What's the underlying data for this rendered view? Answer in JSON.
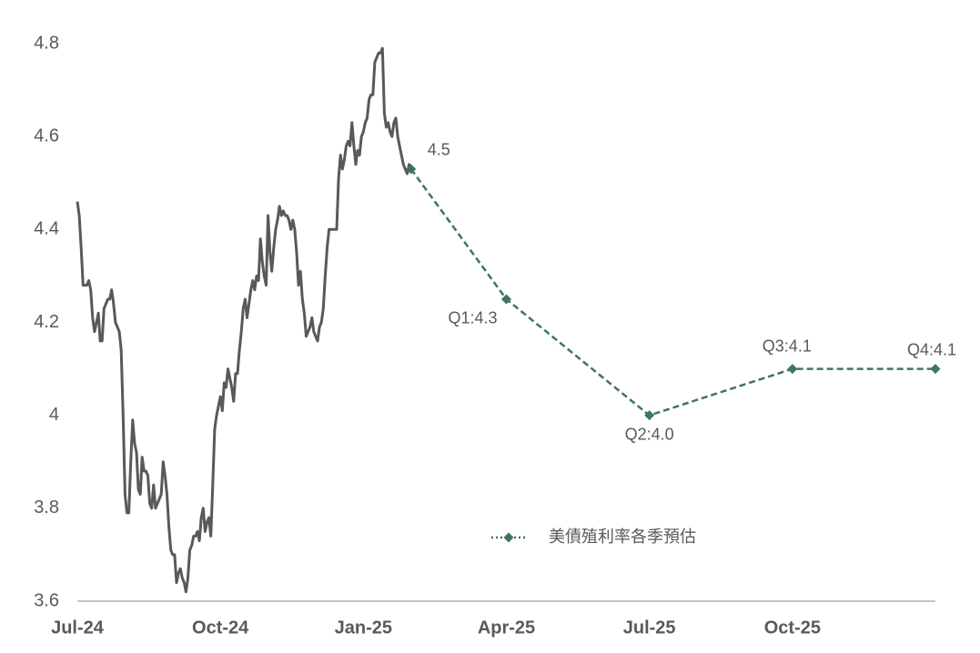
{
  "chart_data": {
    "type": "line",
    "xlim": [
      "2024-07",
      "2026-01"
    ],
    "xticks": [
      {
        "value": "2024-07",
        "label": "Jul-24"
      },
      {
        "value": "2024-10",
        "label": "Oct-24"
      },
      {
        "value": "2025-01",
        "label": "Jan-25"
      },
      {
        "value": "2025-04",
        "label": "Apr-25"
      },
      {
        "value": "2025-07",
        "label": "Jul-25"
      },
      {
        "value": "2025-10",
        "label": "Oct-25"
      }
    ],
    "ylim": [
      3.6,
      4.8
    ],
    "yticks": [
      3.6,
      3.8,
      4,
      4.2,
      4.4,
      4.6,
      4.8
    ],
    "grid": false,
    "series": [
      {
        "color": "#595959",
        "values": [
          4.46,
          4.43,
          4.36,
          4.28,
          4.28,
          4.28,
          4.29,
          4.27,
          4.21,
          4.18,
          4.2,
          4.22,
          4.16,
          4.16,
          4.23,
          4.24,
          4.25,
          4.25,
          4.27,
          4.24,
          4.2,
          4.19,
          4.18,
          4.14,
          4.0,
          3.83,
          3.79,
          3.79,
          3.9,
          3.99,
          3.94,
          3.92,
          3.84,
          3.83,
          3.91,
          3.88,
          3.88,
          3.87,
          3.81,
          3.8,
          3.85,
          3.8,
          3.81,
          3.82,
          3.83,
          3.9,
          3.87,
          3.83,
          3.76,
          3.71,
          3.7,
          3.7,
          3.64,
          3.66,
          3.67,
          3.65,
          3.64,
          3.62,
          3.65,
          3.71,
          3.72,
          3.74,
          3.74,
          3.75,
          3.73,
          3.78,
          3.8,
          3.75,
          3.77,
          3.78,
          3.74,
          3.85,
          3.97,
          4.0,
          4.02,
          4.04,
          4.01,
          4.07,
          4.06,
          4.1,
          4.08,
          4.06,
          4.03,
          4.09,
          4.09,
          4.14,
          4.18,
          4.23,
          4.25,
          4.21,
          4.24,
          4.27,
          4.29,
          4.27,
          4.3,
          4.29,
          4.38,
          4.33,
          4.3,
          4.28,
          4.43,
          4.35,
          4.31,
          4.36,
          4.4,
          4.42,
          4.45,
          4.43,
          4.44,
          4.43,
          4.43,
          4.42,
          4.4,
          4.42,
          4.4,
          4.35,
          4.28,
          4.31,
          4.25,
          4.22,
          4.17,
          4.18,
          4.19,
          4.21,
          4.18,
          4.17,
          4.16,
          4.19,
          4.2,
          4.23,
          4.3,
          4.36,
          4.4,
          4.4,
          4.4,
          4.4,
          4.4,
          4.51,
          4.56,
          4.53,
          4.55,
          4.58,
          4.59,
          4.58,
          4.63,
          4.58,
          4.54,
          4.57,
          4.56,
          4.6,
          4.61,
          4.63,
          4.64,
          4.68,
          4.69,
          4.69,
          4.76,
          4.77,
          4.78,
          4.78,
          4.79,
          4.65,
          4.62,
          4.63,
          4.61,
          4.6,
          4.63,
          4.64,
          4.6,
          4.58,
          4.56,
          4.54,
          4.53,
          4.52,
          4.54,
          4.53
        ]
      },
      {
        "name": "美債殖利率各季預估",
        "color": "#3e7467",
        "dashed": true,
        "marker": "diamond",
        "x": [
          "2025-02",
          "2025-04",
          "2025-07",
          "2025-10",
          "2026-01"
        ],
        "values": [
          4.53,
          4.25,
          4.0,
          4.1,
          4.1
        ],
        "value_labels": [
          "4.5",
          "Q1:4.3",
          "Q2:4.0",
          "Q3:4.1",
          "Q4:4.1"
        ]
      }
    ]
  }
}
